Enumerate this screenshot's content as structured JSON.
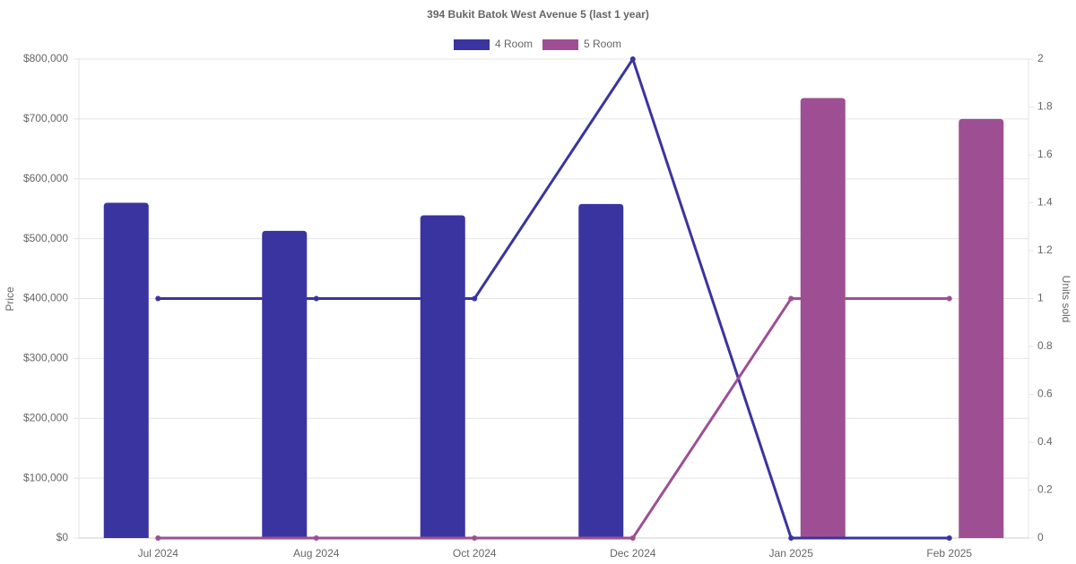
{
  "chart_data": {
    "type": "bar-line",
    "title": "394 Bukit Batok West Avenue 5 (last 1 year)",
    "y_label": "Price",
    "y2_label": "Units sold",
    "categories": [
      "Jul 2024",
      "Aug 2024",
      "Oct 2024",
      "Dec 2024",
      "Jan 2025",
      "Feb 2025"
    ],
    "series": [
      {
        "name": "4 Room",
        "color": "#3a34a0",
        "values": [
          560000,
          513000,
          539000,
          558000,
          null,
          null
        ],
        "units": [
          1,
          1,
          1,
          2,
          0,
          0
        ]
      },
      {
        "name": "5 Room",
        "color": "#9e4f94",
        "values": [
          null,
          null,
          null,
          null,
          735000,
          700000
        ],
        "units": [
          0,
          0,
          0,
          0,
          1,
          1
        ]
      }
    ],
    "ylim": [
      0,
      800000
    ],
    "yticks": [
      {
        "value": 0,
        "label": "$0"
      },
      {
        "value": 100000,
        "label": "$100,000"
      },
      {
        "value": 200000,
        "label": "$200,000"
      },
      {
        "value": 300000,
        "label": "$300,000"
      },
      {
        "value": 400000,
        "label": "$400,000"
      },
      {
        "value": 500000,
        "label": "$500,000"
      },
      {
        "value": 600000,
        "label": "$600,000"
      },
      {
        "value": 700000,
        "label": "$700,000"
      },
      {
        "value": 800000,
        "label": "$800,000"
      }
    ],
    "y2lim": [
      0,
      2
    ],
    "y2ticks": [
      0,
      0.2,
      0.4,
      0.6,
      0.8,
      1,
      1.2,
      1.4,
      1.6,
      1.8,
      2
    ],
    "grid": true
  }
}
